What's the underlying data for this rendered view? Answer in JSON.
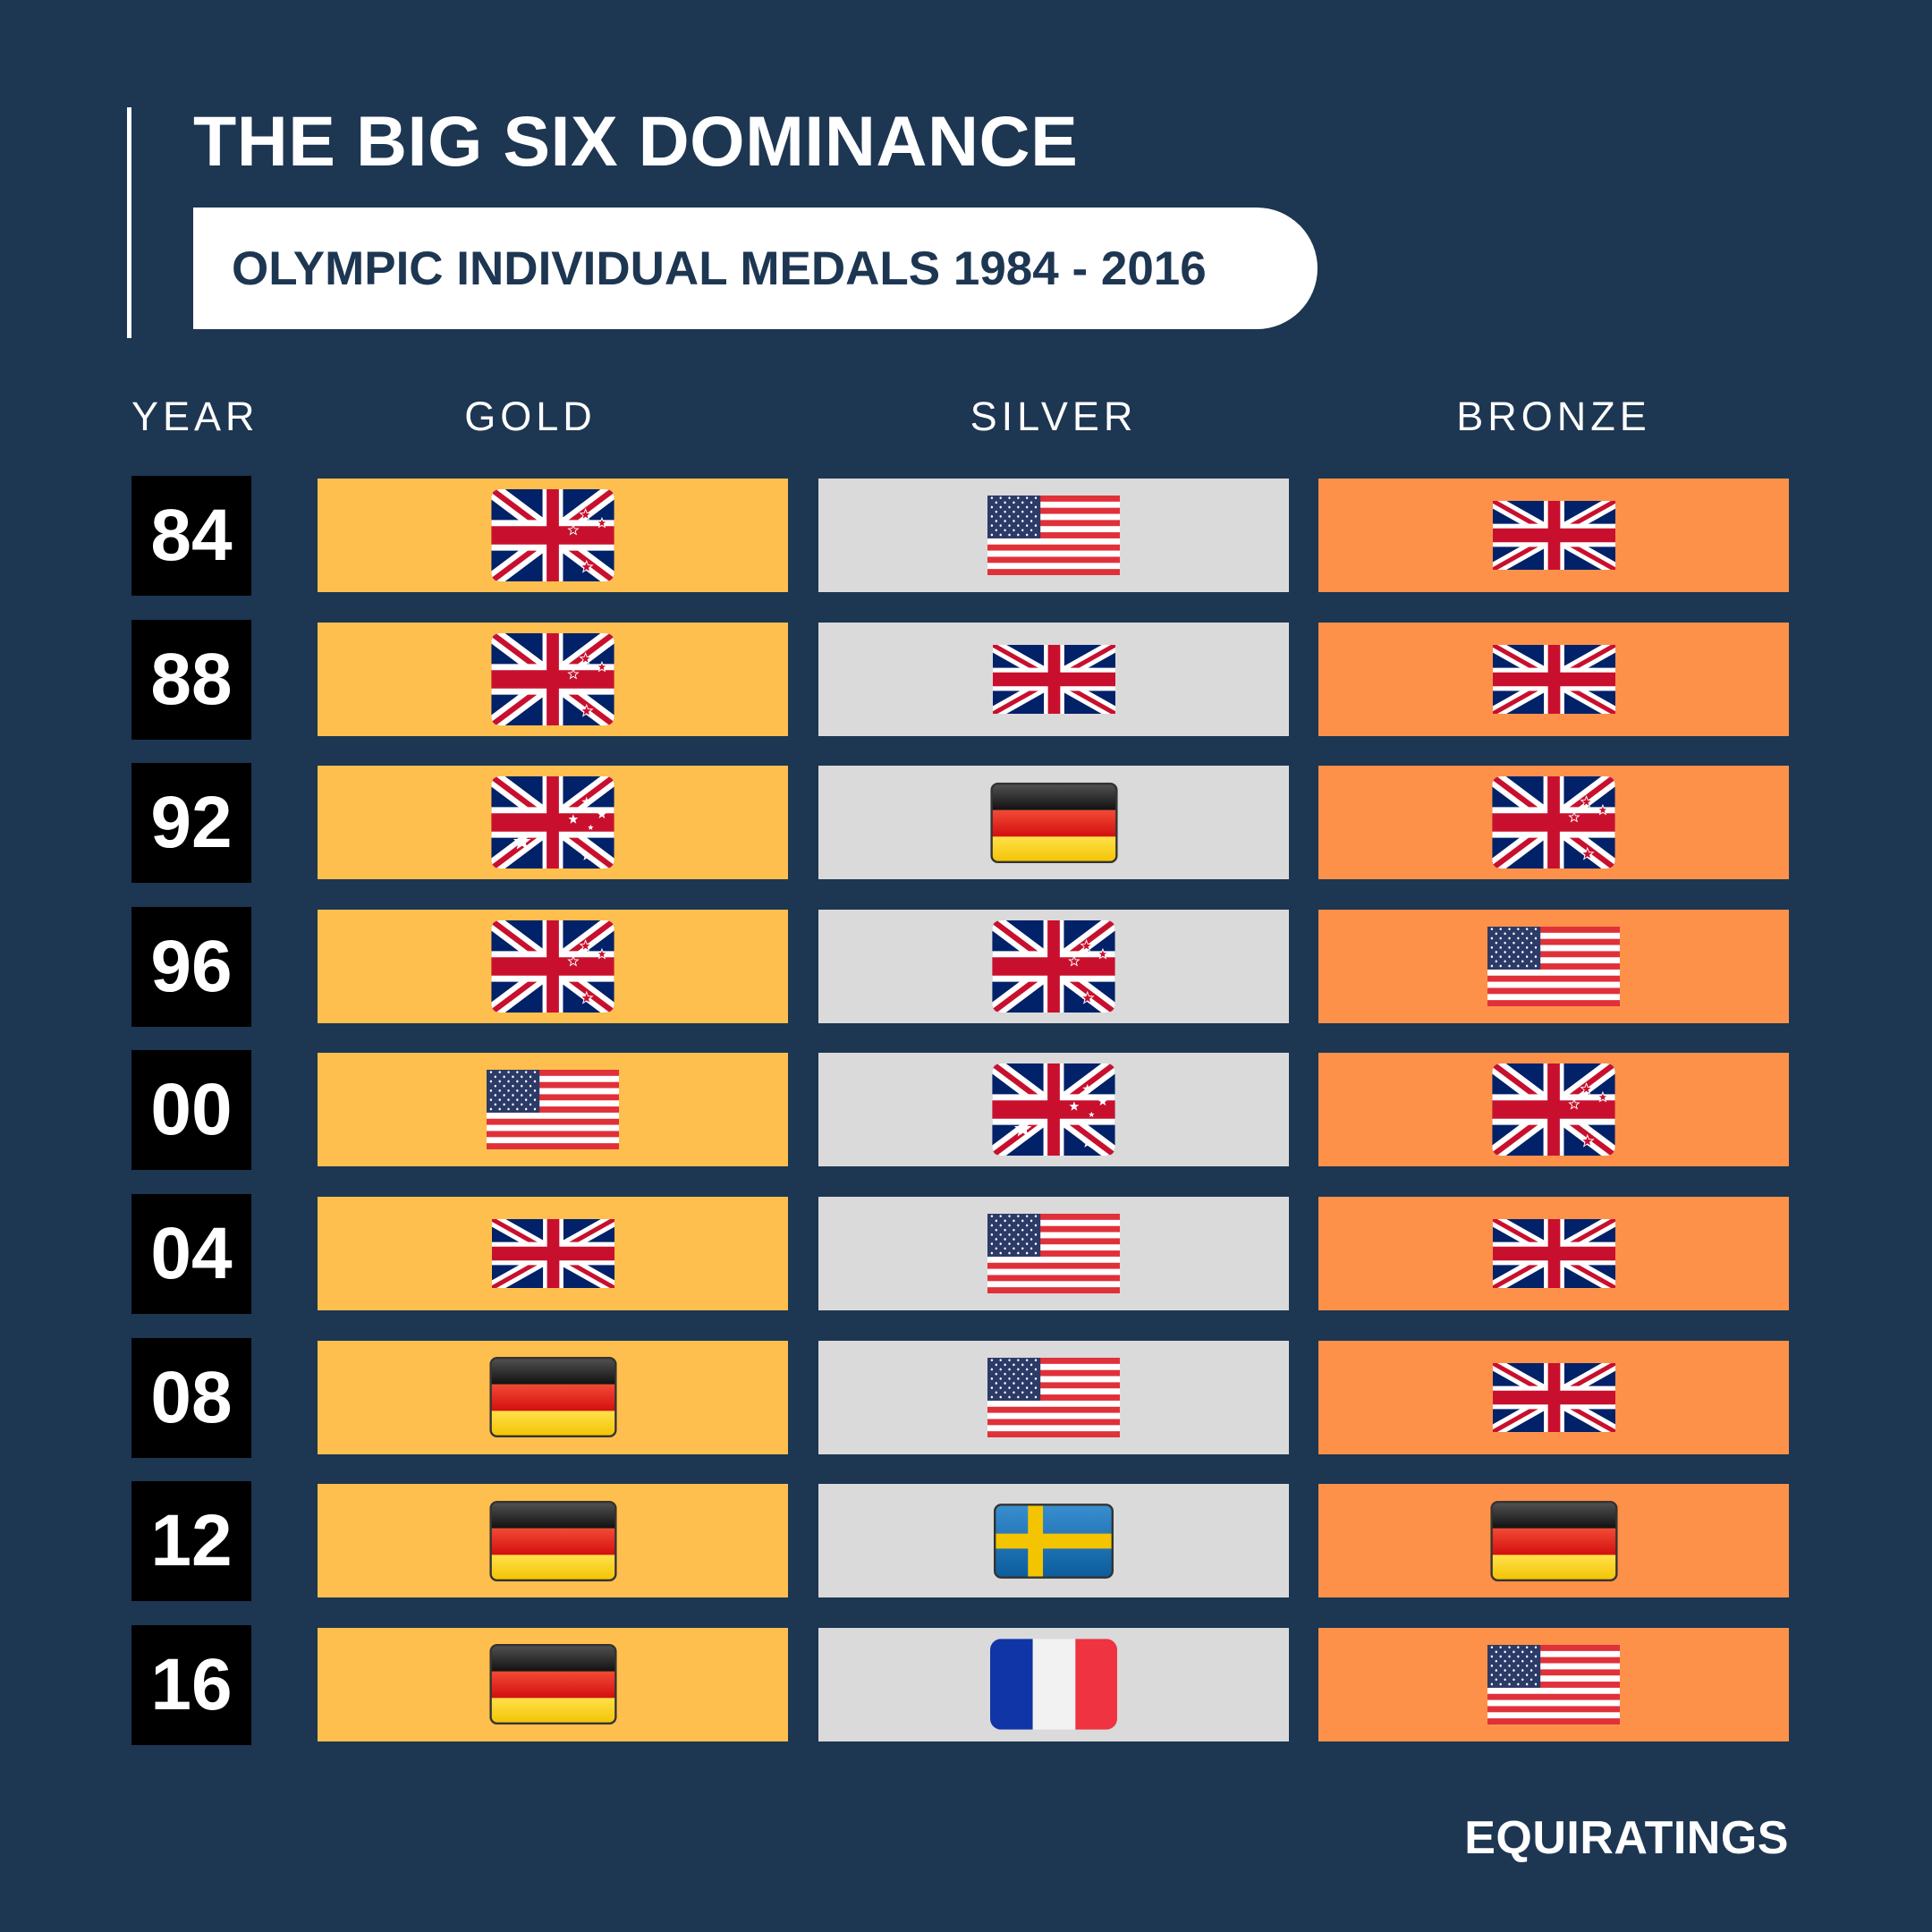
{
  "header": {
    "title": "THE BIG SIX DOMINANCE",
    "subtitle": "OLYMPIC INDIVIDUAL MEDALS 1984 - 2016"
  },
  "columns": {
    "year": "YEAR",
    "gold": "GOLD",
    "silver": "SILVER",
    "bronze": "BRONZE"
  },
  "colors": {
    "background": "#1d3652",
    "gold": "#febf4e",
    "silver": "#dadada",
    "bronze": "#fe914a"
  },
  "rows": [
    {
      "year": "84",
      "gold": "new-zealand-flag-icon",
      "silver": "united-states-flag-icon",
      "bronze": "united-kingdom-flag-icon"
    },
    {
      "year": "88",
      "gold": "new-zealand-flag-icon",
      "silver": "united-kingdom-flag-icon",
      "bronze": "united-kingdom-flag-icon"
    },
    {
      "year": "92",
      "gold": "australia-flag-icon",
      "silver": "germany-flag-icon",
      "bronze": "new-zealand-flag-icon"
    },
    {
      "year": "96",
      "gold": "new-zealand-flag-icon",
      "silver": "new-zealand-flag-icon",
      "bronze": "united-states-flag-icon"
    },
    {
      "year": "00",
      "gold": "united-states-flag-icon",
      "silver": "australia-flag-icon",
      "bronze": "new-zealand-flag-icon"
    },
    {
      "year": "04",
      "gold": "united-kingdom-flag-icon",
      "silver": "united-states-flag-icon",
      "bronze": "united-kingdom-flag-icon"
    },
    {
      "year": "08",
      "gold": "germany-flag-icon",
      "silver": "united-states-flag-icon",
      "bronze": "united-kingdom-flag-icon"
    },
    {
      "year": "12",
      "gold": "germany-flag-icon",
      "silver": "sweden-flag-icon",
      "bronze": "germany-flag-icon"
    },
    {
      "year": "16",
      "gold": "germany-flag-icon",
      "silver": "france-flag-icon",
      "bronze": "united-states-flag-icon"
    }
  ],
  "footer": {
    "brand": "EQUIRATINGS"
  }
}
